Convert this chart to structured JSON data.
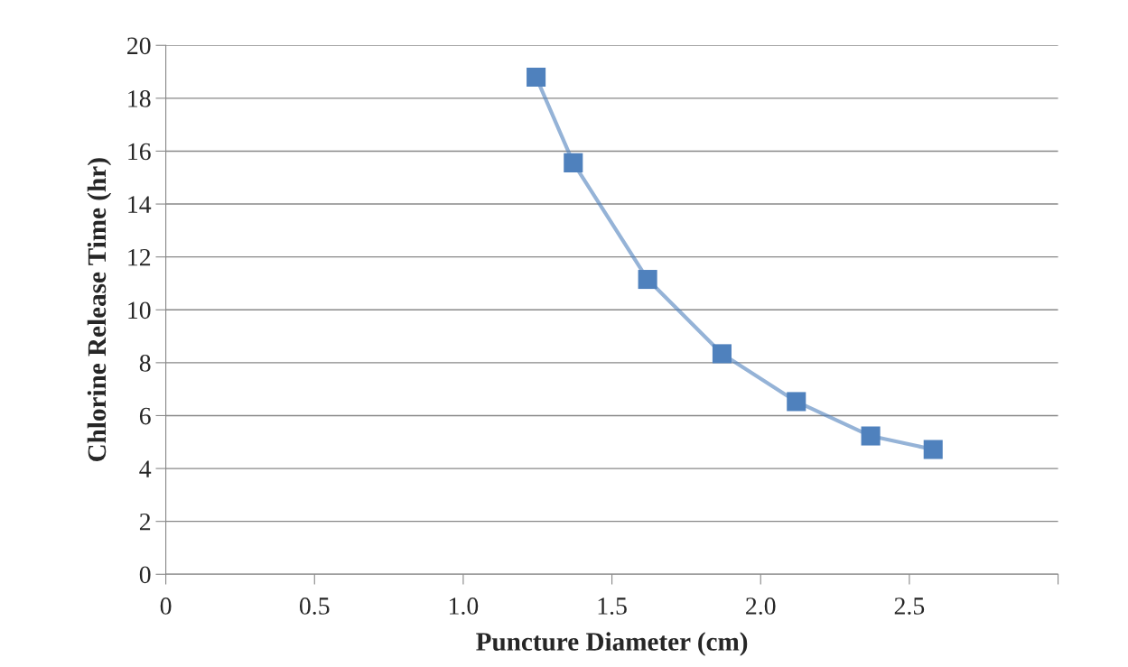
{
  "chart_data": {
    "type": "line",
    "xlabel": "Puncture Diameter (cm)",
    "ylabel": "Chlorine Release Time (hr)",
    "x": [
      1.245,
      1.37,
      1.62,
      1.87,
      2.12,
      2.37,
      2.58
    ],
    "series": [
      {
        "color": "#4f81bd",
        "values": [
          18.8,
          15.56,
          11.15,
          8.34,
          6.53,
          5.23,
          4.72
        ]
      }
    ],
    "xlim": [
      0,
      3
    ],
    "xticks": [
      0,
      {
        "value": 0.5,
        "label": "0.5"
      },
      {
        "value": 1,
        "label": "1.0"
      },
      {
        "value": 1.5,
        "label": "1.5"
      },
      {
        "value": 2,
        "label": "2.0"
      },
      {
        "value": 2.5,
        "label": "2.5"
      },
      {
        "value": 3,
        "label": null
      }
    ],
    "ylim": [
      0,
      20
    ],
    "yticks": [
      0,
      2,
      4,
      6,
      8,
      10,
      12,
      14,
      16,
      18,
      20
    ],
    "grid": "y",
    "marker": "square",
    "line_style": "solid"
  }
}
